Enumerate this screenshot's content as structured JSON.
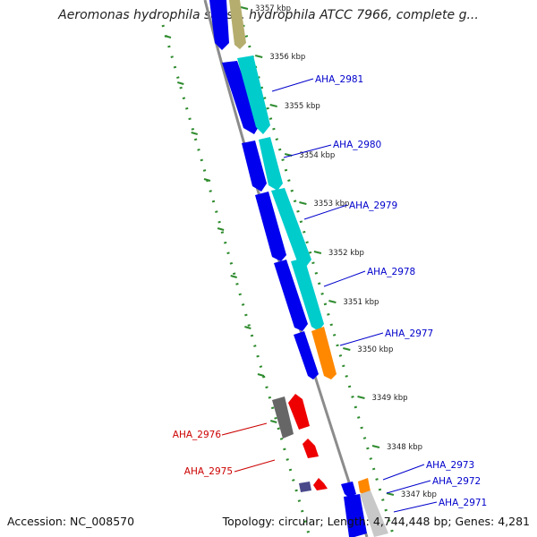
{
  "title": "Aeromonas hydrophila subsp. hydrophila ATCC 7966, complete g...",
  "accession": "Accession: NC_008570",
  "summary": "Topology: circular; Length: 4,744,448 bp; Genes: 4,281",
  "colors": {
    "backbone": "#8c8c8c",
    "forward_cds": "#0000ee",
    "forward_orf": "#00cccc",
    "reverse_cds": "#ee0000",
    "tick": "#2e8b2e",
    "gene_label_forward": "#0000cc",
    "gene_label_reverse": "#cc0000",
    "khaki": "#b5ad6e",
    "orange": "#ff8800",
    "grey": "#666666",
    "lightgrey": "#c8c8c8",
    "slate": "#4a4a8a"
  },
  "position_labels": [
    "3357 kbp",
    "3356 kbp",
    "3355 kbp",
    "3354 kbp",
    "3353 kbp",
    "3352 kbp",
    "3351 kbp",
    "3350 kbp",
    "3349 kbp",
    "3348 kbp",
    "3347 kbp"
  ],
  "genes": [
    {
      "name": "AHA_2981",
      "strand": "forward"
    },
    {
      "name": "AHA_2980",
      "strand": "forward"
    },
    {
      "name": "AHA_2979",
      "strand": "forward"
    },
    {
      "name": "AHA_2978",
      "strand": "forward"
    },
    {
      "name": "AHA_2977",
      "strand": "forward"
    },
    {
      "name": "AHA_2976",
      "strand": "reverse"
    },
    {
      "name": "AHA_2975",
      "strand": "reverse"
    },
    {
      "name": "AHA_2973",
      "strand": "forward"
    },
    {
      "name": "AHA_2972",
      "strand": "forward"
    },
    {
      "name": "AHA_2971",
      "strand": "forward"
    }
  ]
}
